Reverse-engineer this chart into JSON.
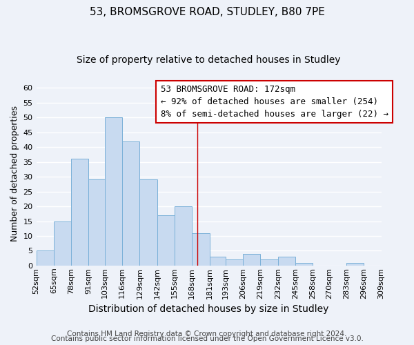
{
  "title": "53, BROMSGROVE ROAD, STUDLEY, B80 7PE",
  "subtitle": "Size of property relative to detached houses in Studley",
  "xlabel": "Distribution of detached houses by size in Studley",
  "ylabel": "Number of detached properties",
  "bin_edges": [
    52,
    65,
    78,
    91,
    103,
    116,
    129,
    142,
    155,
    168,
    181,
    193,
    206,
    219,
    232,
    245,
    258,
    270,
    283,
    296,
    309
  ],
  "bar_heights": [
    5,
    15,
    36,
    29,
    50,
    42,
    29,
    17,
    20,
    11,
    3,
    2,
    4,
    2,
    3,
    1,
    0,
    0,
    1,
    0
  ],
  "bar_color": "#c8daf0",
  "bar_edgecolor": "#7ab0d8",
  "vline_x": 172,
  "vline_color": "#cc0000",
  "ylim": [
    0,
    62
  ],
  "yticks": [
    0,
    5,
    10,
    15,
    20,
    25,
    30,
    35,
    40,
    45,
    50,
    55,
    60
  ],
  "annotation_line1": "53 BROMSGROVE ROAD: 172sqm",
  "annotation_line2": "← 92% of detached houses are smaller (254)",
  "annotation_line3": "8% of semi-detached houses are larger (22) →",
  "footer_line1": "Contains HM Land Registry data © Crown copyright and database right 2024.",
  "footer_line2": "Contains public sector information licensed under the Open Government Licence v3.0.",
  "background_color": "#eef2f9",
  "grid_color": "#ffffff",
  "title_fontsize": 11,
  "subtitle_fontsize": 10,
  "xlabel_fontsize": 10,
  "ylabel_fontsize": 9,
  "tick_fontsize": 8,
  "annotation_fontsize": 9,
  "footer_fontsize": 7.5
}
